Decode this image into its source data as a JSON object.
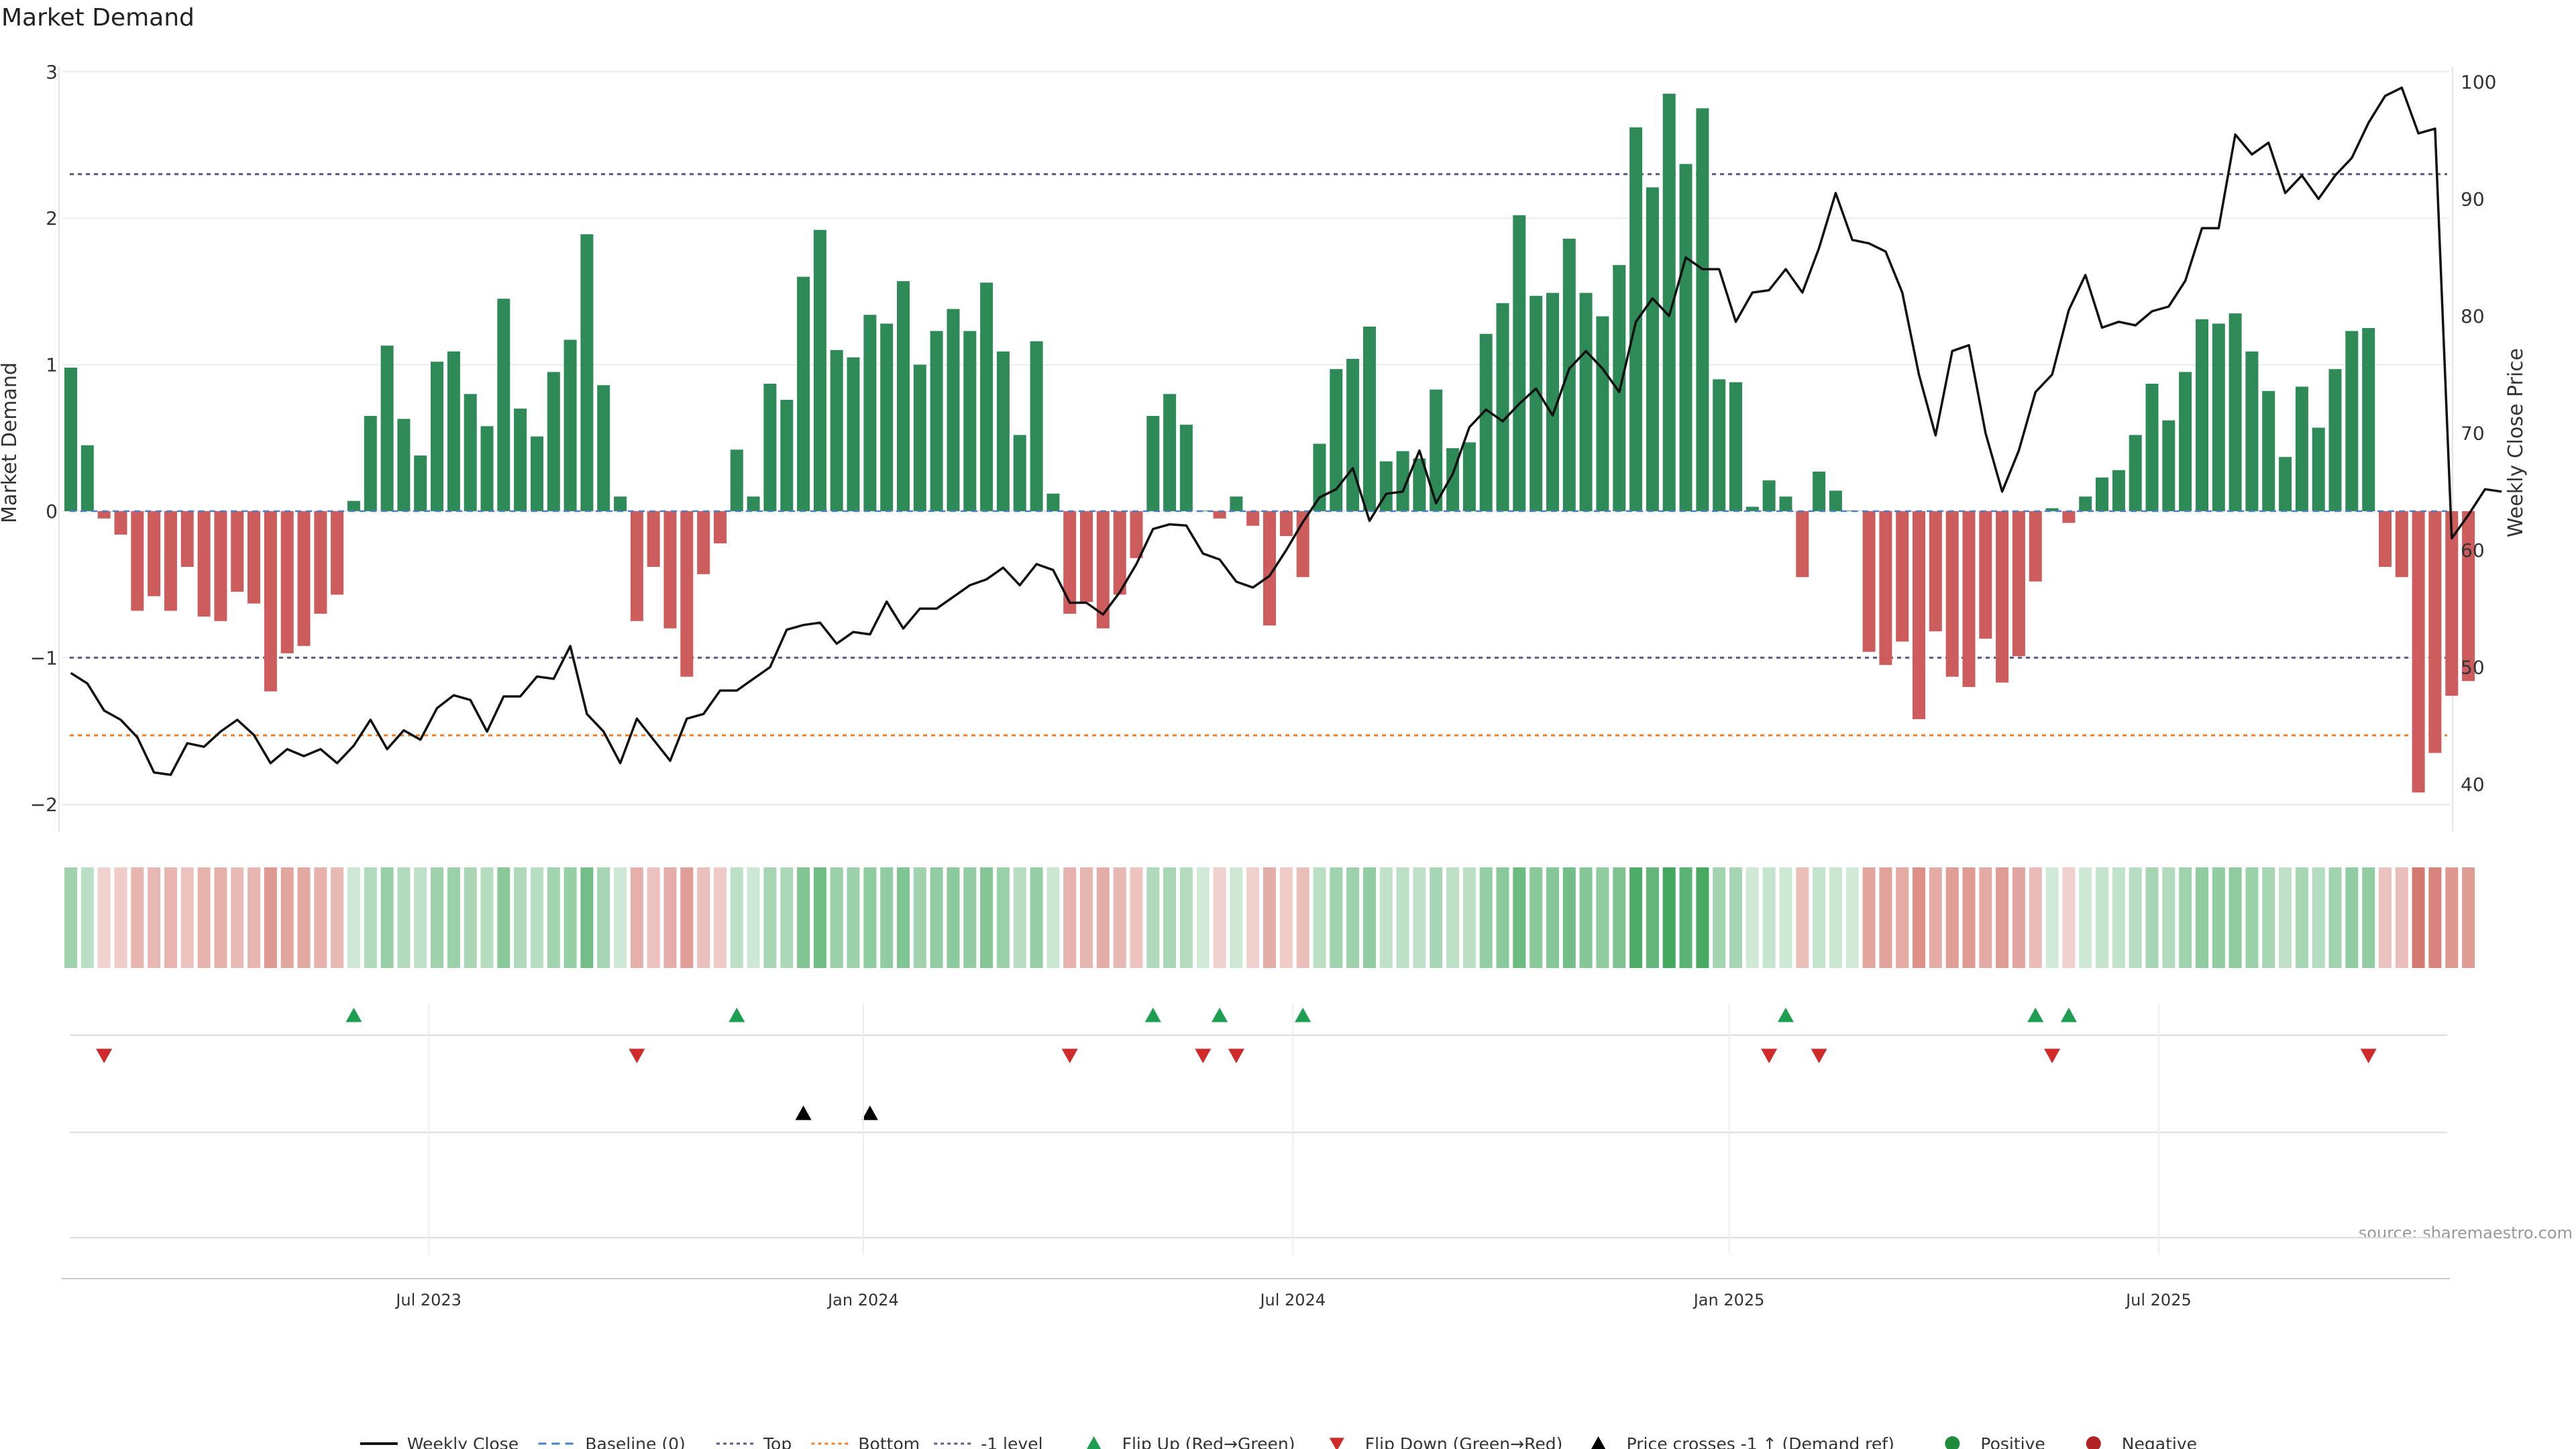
{
  "chart_data": {
    "type": "bar",
    "title": "Market Demand",
    "ylabel_left": "Market Demand",
    "ylabel_right": "Weekly Close Price",
    "source": "source: sharemaestro.com",
    "ylim_left": [
      -2,
      3
    ],
    "ylim_right": [
      38,
      101
    ],
    "yticks_left": [
      -2,
      -1,
      0,
      1,
      2,
      3
    ],
    "yticks_right": [
      40,
      50,
      60,
      70,
      80,
      90,
      100
    ],
    "top_level": 2.3,
    "minus_one_level": -1,
    "bottom_level": -1.53,
    "start_date": "2023-01-01",
    "x_ticks": [
      "Jul 2023",
      "Jan 2024",
      "Jul 2024",
      "Jan 2025",
      "Jul 2025"
    ],
    "x_tick_week_index": [
      21.5,
      47.6,
      73.4,
      99.6,
      125.4
    ],
    "demand": [
      0.98,
      0.45,
      -0.05,
      -0.16,
      -0.68,
      -0.58,
      -0.68,
      -0.38,
      -0.72,
      -0.75,
      -0.55,
      -0.63,
      -1.23,
      -0.97,
      -0.92,
      -0.7,
      -0.57,
      0.07,
      0.65,
      1.13,
      0.63,
      0.38,
      1.02,
      1.09,
      0.8,
      0.58,
      1.45,
      0.7,
      0.51,
      0.95,
      1.17,
      1.89,
      0.86,
      0.1,
      -0.75,
      -0.38,
      -0.8,
      -1.13,
      -0.43,
      -0.22,
      0.42,
      0.1,
      0.87,
      0.76,
      1.6,
      1.92,
      1.1,
      1.05,
      1.34,
      1.28,
      1.57,
      1.0,
      1.23,
      1.38,
      1.23,
      1.56,
      1.09,
      0.52,
      1.16,
      0.12,
      -0.7,
      -0.62,
      -0.8,
      -0.57,
      -0.32,
      0.65,
      0.8,
      0.59,
      0.0,
      -0.05,
      0.1,
      -0.1,
      -0.78,
      -0.17,
      -0.45,
      0.46,
      0.97,
      1.04,
      1.26,
      0.34,
      0.41,
      0.36,
      0.83,
      0.43,
      0.47,
      1.21,
      1.42,
      2.02,
      1.47,
      1.49,
      1.86,
      1.49,
      1.33,
      1.68,
      2.62,
      2.21,
      2.85,
      2.37,
      2.75,
      0.9,
      0.88,
      0.03,
      0.21,
      0.1,
      -0.45,
      0.27,
      0.14,
      0.0,
      -0.96,
      -1.05,
      -0.89,
      -1.42,
      -0.82,
      -1.13,
      -1.2,
      -0.87,
      -1.17,
      -0.99,
      -0.48,
      0.02,
      -0.08,
      0.1,
      0.23,
      0.28,
      0.52,
      0.87,
      0.62,
      0.95,
      1.31,
      1.28,
      1.35,
      1.09,
      0.82,
      0.37,
      0.85,
      0.57,
      0.97,
      1.23,
      1.25,
      -0.38,
      -0.45,
      -1.92,
      -1.65,
      -1.26,
      -1.16
    ],
    "weekly_close": [
      49.5,
      48.6,
      46.3,
      45.5,
      44.0,
      41.0,
      40.8,
      43.5,
      43.2,
      44.5,
      45.5,
      44.2,
      41.8,
      43.0,
      42.4,
      43.0,
      41.8,
      43.3,
      45.5,
      43.0,
      44.6,
      43.8,
      46.5,
      47.6,
      47.2,
      44.5,
      47.5,
      47.5,
      49.2,
      49.0,
      51.8,
      46.0,
      44.5,
      41.8,
      45.6,
      43.8,
      42.0,
      45.6,
      46.0,
      48.0,
      48.0,
      49.0,
      50.0,
      53.2,
      53.6,
      53.8,
      52.0,
      53.0,
      52.8,
      55.6,
      53.3,
      55.0,
      55.0,
      56.0,
      57.0,
      57.5,
      58.5,
      57.0,
      58.8,
      58.3,
      55.5,
      55.5,
      54.5,
      56.4,
      58.8,
      61.8,
      62.2,
      62.1,
      59.7,
      59.2,
      57.3,
      56.8,
      57.8,
      60.0,
      62.4,
      64.5,
      65.2,
      67.0,
      62.5,
      64.8,
      65.0,
      68.5,
      64.0,
      66.5,
      70.5,
      72.0,
      71.0,
      72.5,
      73.8,
      71.5,
      75.5,
      77.0,
      75.5,
      73.5,
      79.5,
      81.5,
      80.0,
      85.0,
      84.0,
      84.0,
      79.5,
      82.0,
      82.2,
      84.0,
      82.0,
      85.8,
      90.5,
      86.5,
      86.2,
      85.5,
      82.0,
      75.0,
      69.8,
      77.0,
      77.5,
      70.0,
      65.0,
      68.5,
      73.5,
      75.0,
      80.5,
      83.5,
      79.0,
      79.5,
      79.2,
      80.4,
      80.8,
      83.0,
      87.5,
      87.5,
      95.5,
      93.8,
      94.8,
      90.5,
      92.0,
      90.0,
      92.0,
      93.5,
      96.5,
      98.8,
      99.5,
      95.6,
      96.0,
      61.0,
      63.0,
      65.2,
      65.0
    ],
    "flip_up_weeks": [
      17,
      40,
      65,
      69,
      74,
      103,
      118,
      120
    ],
    "flip_down_weeks": [
      2,
      34,
      60,
      68,
      70,
      102,
      105,
      119,
      138
    ],
    "price_cross_weeks": [
      44,
      48
    ],
    "legend": [
      {
        "label": "Weekly Close",
        "kind": "line",
        "color": "#111111"
      },
      {
        "label": "Baseline (0)",
        "kind": "dash",
        "color": "#4a7fc1"
      },
      {
        "label": "Top",
        "kind": "dot",
        "color": "#5a5a80"
      },
      {
        "label": "Bottom",
        "kind": "dot",
        "color": "#e8822a"
      },
      {
        "label": "-1 level",
        "kind": "dot",
        "color": "#5a5a80"
      },
      {
        "label": "Flip Up (Red→Green)",
        "kind": "tri-up",
        "color": "#1e9e50"
      },
      {
        "label": "Flip Down (Green→Red)",
        "kind": "tri-down",
        "color": "#d12a2a"
      },
      {
        "label": "Price crosses -1 ↑ (Demand ref)",
        "kind": "tri-up",
        "color": "#000000"
      },
      {
        "label": "Positive",
        "kind": "circle",
        "color": "#1e8c3a"
      },
      {
        "label": "Negative",
        "kind": "circle",
        "color": "#b22222"
      }
    ],
    "colors": {
      "positive": "#2e8b57",
      "negative": "#cd5c5c",
      "heat_positive": "#2e9e4c",
      "heat_negative": "#c0392b"
    }
  }
}
